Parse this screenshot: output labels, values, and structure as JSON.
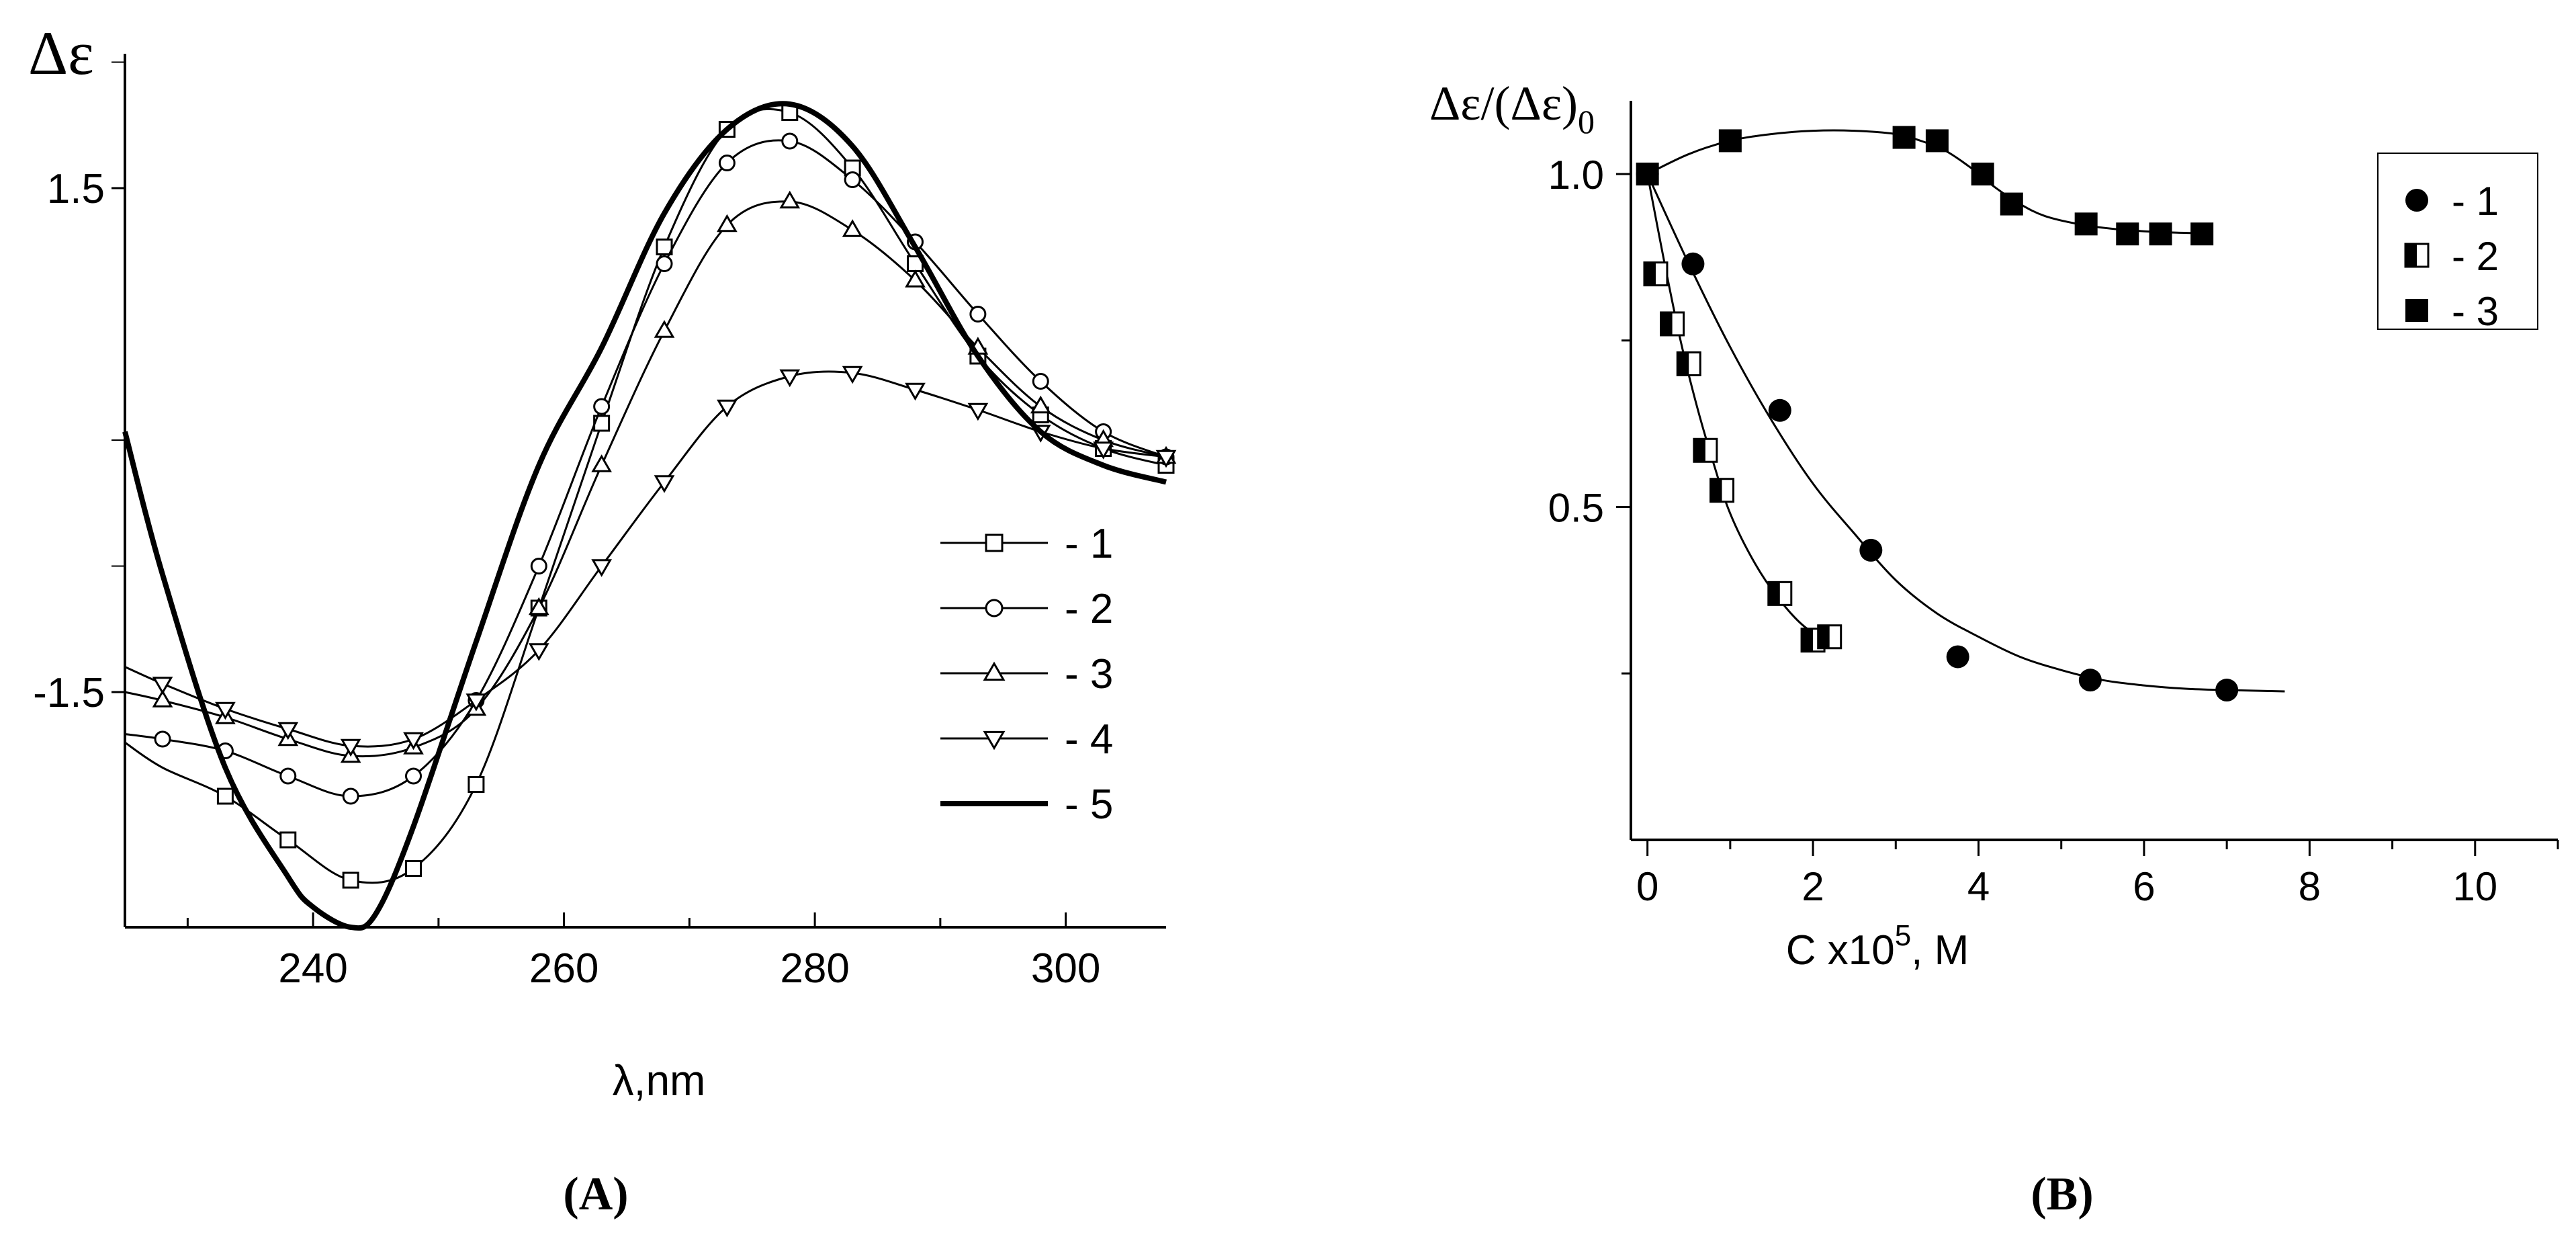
{
  "chart_data": [
    {
      "panel_label": "A",
      "type": "line",
      "ylabel": "Δε",
      "xlabel": "λ,nm",
      "xlim": [
        225,
        308
      ],
      "ylim": [
        -2.9,
        2.3
      ],
      "x_ticks": [
        240,
        260,
        280,
        300
      ],
      "y_ticks": [
        1.5,
        -1.5
      ],
      "y_tick_labels": [
        "1.5",
        "-1.5"
      ],
      "series": [
        {
          "name": "- 1",
          "marker": "square",
          "markers_x": [
            233,
            238,
            243,
            248,
            253,
            258,
            263,
            268,
            273,
            278,
            283,
            288,
            293,
            298,
            303,
            308
          ],
          "x": [
            225,
            228,
            233,
            238,
            243,
            248,
            253,
            258,
            263,
            268,
            273,
            278,
            283,
            288,
            293,
            298,
            303,
            308
          ],
          "y": [
            -1.8,
            -1.95,
            -2.12,
            -2.38,
            -2.62,
            -2.55,
            -2.05,
            -1.0,
            0.1,
            1.15,
            1.85,
            1.95,
            1.62,
            1.05,
            0.5,
            0.15,
            -0.05,
            -0.15
          ]
        },
        {
          "name": "- 2",
          "marker": "circle",
          "markers_x": [
            228,
            233,
            238,
            243,
            248,
            253,
            258,
            263,
            268,
            273,
            278,
            283,
            288,
            293,
            298,
            303,
            308
          ],
          "x": [
            225,
            228,
            233,
            238,
            243,
            248,
            253,
            258,
            263,
            268,
            273,
            278,
            283,
            288,
            293,
            298,
            303,
            308
          ],
          "y": [
            -1.75,
            -1.78,
            -1.85,
            -2.0,
            -2.12,
            -2.0,
            -1.55,
            -0.75,
            0.2,
            1.05,
            1.65,
            1.78,
            1.55,
            1.18,
            0.75,
            0.35,
            0.05,
            -0.1
          ]
        },
        {
          "name": "- 3",
          "marker": "triangle-up",
          "markers_x": [
            228,
            233,
            238,
            243,
            248,
            253,
            258,
            263,
            268,
            273,
            278,
            283,
            288,
            293,
            298,
            303,
            308
          ],
          "x": [
            225,
            228,
            233,
            238,
            243,
            248,
            253,
            258,
            263,
            268,
            273,
            278,
            283,
            288,
            293,
            298,
            303,
            308
          ],
          "y": [
            -1.5,
            -1.55,
            -1.65,
            -1.78,
            -1.88,
            -1.83,
            -1.6,
            -1.0,
            -0.15,
            0.65,
            1.28,
            1.42,
            1.25,
            0.95,
            0.55,
            0.2,
            0.0,
            -0.1
          ]
        },
        {
          "name": "- 4",
          "marker": "triangle-down",
          "markers_x": [
            228,
            233,
            238,
            243,
            248,
            253,
            258,
            263,
            268,
            273,
            278,
            283,
            288,
            293,
            298,
            303,
            308
          ],
          "x": [
            225,
            228,
            233,
            238,
            243,
            248,
            253,
            258,
            263,
            268,
            273,
            278,
            283,
            288,
            293,
            298,
            303,
            308
          ],
          "y": [
            -1.35,
            -1.45,
            -1.6,
            -1.72,
            -1.82,
            -1.78,
            -1.55,
            -1.25,
            -0.75,
            -0.25,
            0.2,
            0.38,
            0.4,
            0.3,
            0.18,
            0.05,
            -0.05,
            -0.1
          ]
        },
        {
          "name": "- 5",
          "marker": "none",
          "bold": true,
          "x": [
            225,
            228,
            233,
            238,
            240,
            243,
            245,
            248,
            253,
            258,
            263,
            268,
            273,
            278,
            283,
            288,
            293,
            298,
            303,
            308
          ],
          "y": [
            0.05,
            -0.8,
            -1.95,
            -2.6,
            -2.78,
            -2.9,
            -2.82,
            -2.3,
            -1.2,
            -0.15,
            0.55,
            1.35,
            1.85,
            2.0,
            1.75,
            1.15,
            0.5,
            0.05,
            -0.15,
            -0.25
          ]
        }
      ]
    },
    {
      "panel_label": "B",
      "type": "scatter",
      "ylabel": "Δε/(Δε)",
      "ylabel_subscript": "0",
      "xlabel": "C x10",
      "xlabel_superscript": "5",
      "xlabel_unit": ", M",
      "xlim": [
        -0.2,
        11
      ],
      "ylim": [
        0,
        1.11
      ],
      "x_ticks": [
        0,
        2,
        4,
        6,
        8,
        10
      ],
      "y_ticks": [
        1.0,
        0.5
      ],
      "y_tick_labels": [
        "1.0",
        "0.5"
      ],
      "series": [
        {
          "name": "- 1",
          "marker": "filled-circle",
          "x": [
            0,
            0.55,
            1.6,
            2.7,
            3.75,
            5.35,
            7.0
          ],
          "y": [
            1.0,
            0.865,
            0.645,
            0.435,
            0.275,
            0.24,
            0.225
          ],
          "fit_x": [
            0,
            0.5,
            1,
            1.5,
            2,
            2.5,
            3,
            3.5,
            4,
            4.5,
            5,
            5.5,
            6,
            6.5,
            7,
            7.7
          ],
          "fit_y": [
            1.0,
            0.865,
            0.74,
            0.63,
            0.535,
            0.46,
            0.39,
            0.34,
            0.305,
            0.275,
            0.255,
            0.24,
            0.232,
            0.227,
            0.225,
            0.223
          ]
        },
        {
          "name": "- 2",
          "marker": "half-filled-square",
          "x": [
            0.1,
            0.3,
            0.5,
            0.7,
            0.9,
            1.6,
            2.0,
            2.2
          ],
          "y": [
            0.85,
            0.775,
            0.715,
            0.585,
            0.525,
            0.37,
            0.3,
            0.305
          ],
          "fit_x": [
            0,
            0.2,
            0.4,
            0.6,
            0.8,
            1,
            1.3,
            1.6,
            1.9,
            2.2
          ],
          "fit_y": [
            1.0,
            0.87,
            0.75,
            0.65,
            0.565,
            0.49,
            0.415,
            0.36,
            0.32,
            0.3
          ]
        },
        {
          "name": "- 3",
          "marker": "filled-square",
          "x": [
            0,
            1.0,
            3.1,
            3.5,
            4.05,
            4.4,
            5.3,
            5.8,
            6.2,
            6.7
          ],
          "y": [
            1.0,
            1.05,
            1.055,
            1.05,
            1.0,
            0.955,
            0.925,
            0.91,
            0.91,
            0.91
          ],
          "fit_x": [
            0,
            0.5,
            1,
            1.5,
            2,
            2.5,
            3,
            3.3,
            3.6,
            3.9,
            4.2,
            4.5,
            4.8,
            5.2,
            5.6,
            6,
            6.4,
            6.8
          ],
          "fit_y": [
            1.0,
            1.03,
            1.05,
            1.06,
            1.065,
            1.065,
            1.06,
            1.05,
            1.035,
            1.01,
            0.98,
            0.955,
            0.937,
            0.925,
            0.918,
            0.914,
            0.912,
            0.911
          ]
        }
      ]
    }
  ]
}
